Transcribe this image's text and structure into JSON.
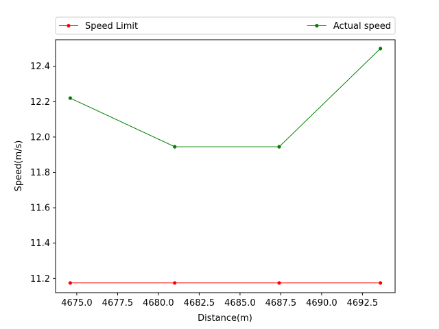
{
  "chart_data": {
    "type": "line",
    "title": "",
    "xlabel": "Distance(m)",
    "ylabel": "Speed(m/s)",
    "xlim": [
      4673.7,
      4694.5
    ],
    "ylim": [
      11.12,
      12.55
    ],
    "x": [
      4674.6,
      4681.0,
      4687.4,
      4693.6
    ],
    "x_ticks": [
      4675.0,
      4677.5,
      4680.0,
      4682.5,
      4685.0,
      4687.5,
      4690.0,
      4692.5
    ],
    "x_tick_labels": [
      "4675.0",
      "4677.5",
      "4680.0",
      "4682.5",
      "4685.0",
      "4687.5",
      "4690.0",
      "4692.5"
    ],
    "y_ticks": [
      11.2,
      11.4,
      11.6,
      11.8,
      12.0,
      12.2,
      12.4
    ],
    "y_tick_labels": [
      "11.2",
      "11.4",
      "11.6",
      "11.8",
      "12.0",
      "12.2",
      "12.4"
    ],
    "grid": false,
    "legend_placement": "top, above plot",
    "series": [
      {
        "name": "Speed Limit",
        "color": "#ff0000",
        "values": [
          11.175,
          11.175,
          11.175,
          11.175
        ]
      },
      {
        "name": "Actual speed",
        "color": "#008000",
        "values": [
          12.22,
          11.945,
          11.945,
          12.5
        ]
      }
    ]
  }
}
